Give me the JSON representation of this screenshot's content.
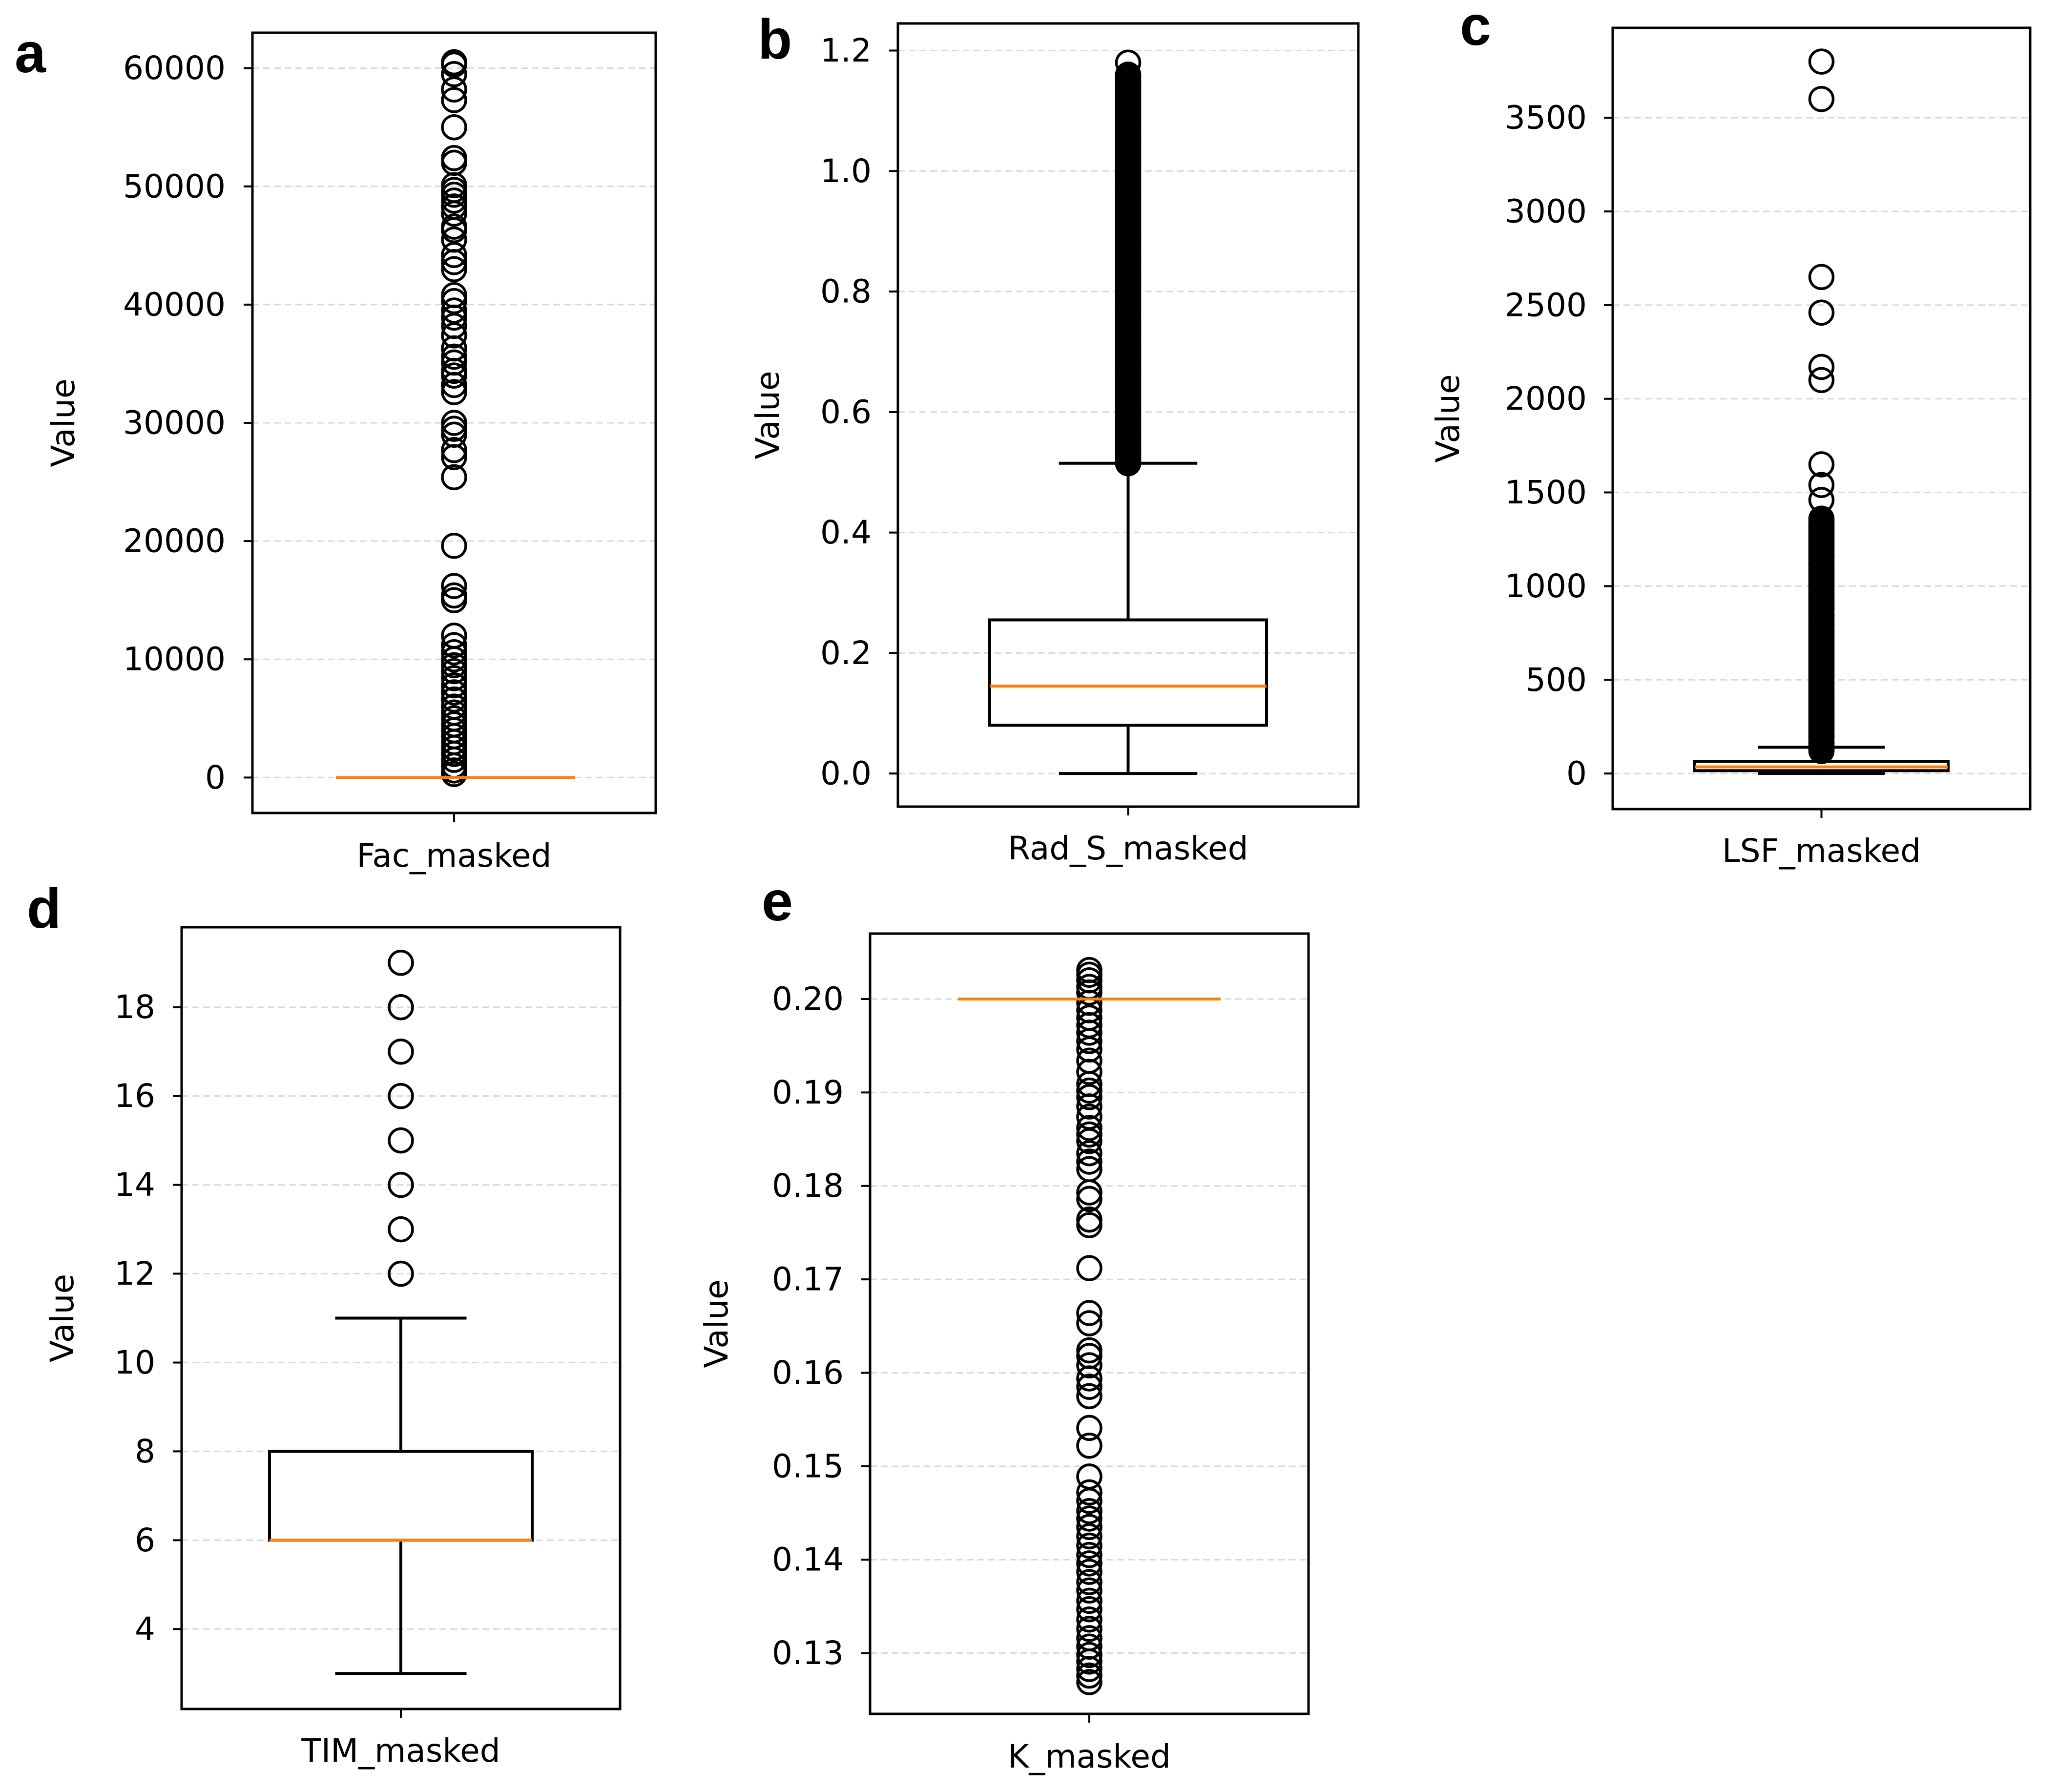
{
  "colors": {
    "median": "#ff7f0e",
    "box": "#000000",
    "grid": "#d9d9d9",
    "background": "#ffffff"
  },
  "chart_data": [
    {
      "panel": "a",
      "type": "boxplot",
      "category": "Fac_masked",
      "ylabel": "Value",
      "ylim": [
        -3000,
        63000
      ],
      "yticks": [
        0,
        10000,
        20000,
        30000,
        40000,
        50000,
        60000
      ],
      "ytick_labels": [
        "0",
        "10000",
        "20000",
        "30000",
        "40000",
        "50000",
        "60000"
      ],
      "grid": "horizontal dashed",
      "box": {
        "q1": 0,
        "median": 0,
        "q3": 0,
        "whisker_low": 0,
        "whisker_high": 0
      },
      "outliers": [
        60500,
        60300,
        59500,
        58200,
        57300,
        55000,
        52400,
        52000,
        50100,
        49700,
        49300,
        48800,
        48300,
        47700,
        46600,
        46300,
        45500,
        44200,
        43600,
        43000,
        40800,
        40300,
        39500,
        38900,
        38200,
        37400,
        36300,
        35600,
        35100,
        34400,
        34000,
        33200,
        32600,
        30000,
        29500,
        29000,
        27700,
        27100,
        25400,
        19600,
        16200,
        15400,
        15000,
        12000,
        11200,
        10600,
        10000,
        9500,
        9000,
        8400,
        7800,
        7200,
        6600,
        6000,
        5500,
        5000,
        4500,
        4000,
        3500,
        3000,
        2500,
        2000,
        1500,
        1000,
        600,
        300
      ]
    },
    {
      "panel": "b",
      "type": "boxplot",
      "category": "Rad_S_masked",
      "ylabel": "Value",
      "ylim": [
        -0.055,
        1.245
      ],
      "yticks": [
        0.0,
        0.2,
        0.4,
        0.6,
        0.8,
        1.0,
        1.2
      ],
      "ytick_labels": [
        "0.0",
        "0.2",
        "0.4",
        "0.6",
        "0.8",
        "1.0",
        "1.2"
      ],
      "grid": "horizontal dashed",
      "box": {
        "q1": 0.08,
        "median": 0.145,
        "q3": 0.255,
        "whisker_low": 0.0,
        "whisker_high": 0.515
      },
      "outlier_range": [
        0.515,
        1.16
      ],
      "outliers": [
        1.18,
        1.16,
        1.145,
        1.13,
        1.11,
        1.09,
        1.07,
        1.05,
        1.03,
        1.01,
        0.99,
        0.97,
        0.95,
        0.93,
        0.91,
        0.89,
        0.87,
        0.85,
        0.83,
        0.81,
        0.79,
        0.77,
        0.75,
        0.73,
        0.71,
        0.69,
        0.67,
        0.65,
        0.63,
        0.61,
        0.59,
        0.57,
        0.55,
        0.53,
        0.515
      ]
    },
    {
      "panel": "c",
      "type": "boxplot",
      "category": "LSF_masked",
      "ylabel": "Value",
      "ylim": [
        -190,
        3980
      ],
      "yticks": [
        0,
        500,
        1000,
        1500,
        2000,
        2500,
        3000,
        3500
      ],
      "ytick_labels": [
        "0",
        "500",
        "1000",
        "1500",
        "2000",
        "2500",
        "3000",
        "3500"
      ],
      "grid": "horizontal dashed",
      "box": {
        "q1": 15,
        "median": 35,
        "q3": 65,
        "whisker_low": 0,
        "whisker_high": 140
      },
      "outlier_range": [
        120,
        1360
      ],
      "outliers": [
        3800,
        3600,
        2650,
        2460,
        2170,
        2100,
        1650,
        1540,
        1460,
        1360,
        1320,
        1280,
        1240,
        1200,
        1160,
        1120,
        1080,
        1040,
        1000,
        960,
        920,
        880,
        840,
        800,
        760,
        720,
        680,
        640,
        600,
        560,
        520,
        480,
        440,
        400,
        360,
        320,
        280,
        240,
        200,
        160,
        125
      ]
    },
    {
      "panel": "d",
      "type": "boxplot",
      "category": "TIM_masked",
      "ylabel": "Value",
      "ylim": [
        2.2,
        19.8
      ],
      "yticks": [
        4,
        6,
        8,
        10,
        12,
        14,
        16,
        18
      ],
      "ytick_labels": [
        "4",
        "6",
        "8",
        "10",
        "12",
        "14",
        "16",
        "18"
      ],
      "grid": "horizontal dashed",
      "box": {
        "q1": 6,
        "median": 6,
        "q3": 8,
        "whisker_low": 3,
        "whisker_high": 11
      },
      "outliers": [
        12,
        13,
        14,
        15,
        16,
        17,
        18,
        19
      ]
    },
    {
      "panel": "e",
      "type": "boxplot",
      "category": "K_masked",
      "ylabel": "Value",
      "ylim": [
        0.1235,
        0.207
      ],
      "yticks": [
        0.13,
        0.14,
        0.15,
        0.16,
        0.17,
        0.18,
        0.19,
        0.2
      ],
      "ytick_labels": [
        "0.13",
        "0.14",
        "0.15",
        "0.16",
        "0.17",
        "0.18",
        "0.19",
        "0.20"
      ],
      "grid": "horizontal dashed",
      "box": {
        "q1": 0.2,
        "median": 0.2,
        "q3": 0.2,
        "whisker_low": 0.2,
        "whisker_high": 0.2
      },
      "outliers": [
        0.2031,
        0.2026,
        0.202,
        0.2013,
        0.2007,
        0.1996,
        0.1988,
        0.198,
        0.1972,
        0.1964,
        0.1955,
        0.1946,
        0.1934,
        0.1922,
        0.1909,
        0.1902,
        0.1895,
        0.1885,
        0.1874,
        0.1862,
        0.1855,
        0.1848,
        0.1835,
        0.1826,
        0.1818,
        0.1793,
        0.1786,
        0.1764,
        0.1758,
        0.1712,
        0.1664,
        0.1653,
        0.1624,
        0.1618,
        0.1608,
        0.1594,
        0.1585,
        0.1575,
        0.1541,
        0.1522,
        0.1489,
        0.1472,
        0.1463,
        0.1452,
        0.1444,
        0.1435,
        0.1425,
        0.1415,
        0.1405,
        0.1396,
        0.1387,
        0.1376,
        0.1367,
        0.1356,
        0.1347,
        0.1336,
        0.1326,
        0.1316,
        0.1307,
        0.1298,
        0.1291,
        0.1283,
        0.1276,
        0.1269
      ]
    }
  ]
}
